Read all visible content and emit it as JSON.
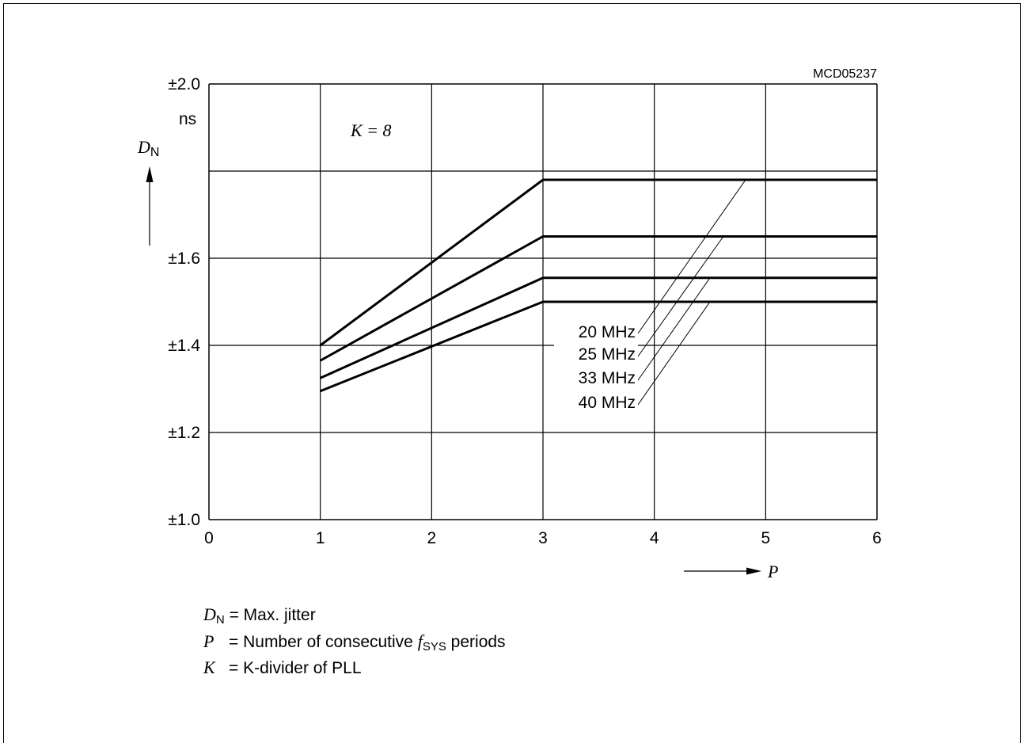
{
  "figure_id": "MCD05237",
  "chart_data": {
    "type": "line",
    "title": "",
    "x_ticks": [
      "0",
      "1",
      "2",
      "3",
      "4",
      "5",
      "6"
    ],
    "y_ticks": [
      "±1.0",
      "±1.2",
      "±1.4",
      "±1.6",
      "±2.0"
    ],
    "y_unit": "ns",
    "xlim": [
      0,
      6
    ],
    "ylim": [
      1.0,
      2.0
    ],
    "y_tick_values": [
      1.0,
      1.2,
      1.4,
      1.6,
      2.0
    ],
    "x_grid": [
      0,
      1,
      2,
      3,
      4,
      5,
      6
    ],
    "y_grid": [
      1.0,
      1.2,
      1.4,
      1.6,
      1.8,
      2.0
    ],
    "grid": true,
    "ylabel_main": "D",
    "ylabel_sub": "N",
    "xlabel": "P",
    "annotation_main": "K = 8",
    "series": [
      {
        "name": "20 MHz",
        "x": [
          1,
          3,
          6
        ],
        "y": [
          1.4,
          1.78,
          1.78
        ]
      },
      {
        "name": "25 MHz",
        "x": [
          1,
          3,
          6
        ],
        "y": [
          1.365,
          1.65,
          1.65
        ]
      },
      {
        "name": "33 MHz",
        "x": [
          1,
          3,
          6
        ],
        "y": [
          1.325,
          1.555,
          1.555
        ]
      },
      {
        "name": "40 MHz",
        "x": [
          1,
          3,
          6
        ],
        "y": [
          1.295,
          1.5,
          1.5
        ]
      }
    ],
    "series_label_targets": [
      {
        "x": 4.82,
        "y": 1.78
      },
      {
        "x": 4.62,
        "y": 1.65
      },
      {
        "x": 4.5,
        "y": 1.555
      },
      {
        "x": 4.5,
        "y": 1.5
      }
    ]
  },
  "legend": {
    "line1": {
      "symbol": "D",
      "sub": "N",
      "text": " = Max. jitter"
    },
    "line2": {
      "symbol": "P",
      "text_before": "= Number of consecutive ",
      "f": "f",
      "f_sub": "SYS",
      "text_after": " periods"
    },
    "line3": {
      "symbol": "K",
      "text": "= K-divider of PLL"
    }
  }
}
